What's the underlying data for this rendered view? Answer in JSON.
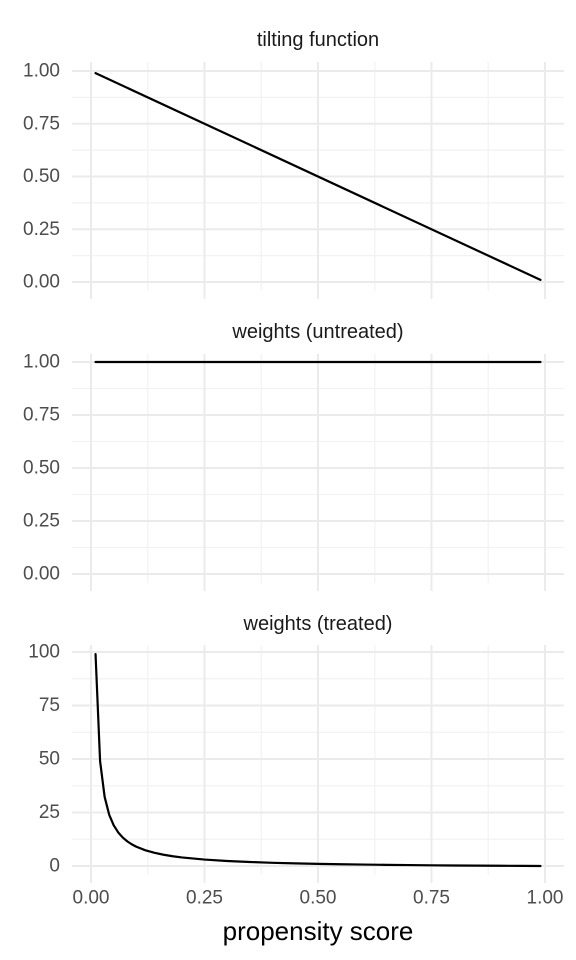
{
  "chart_data": [
    {
      "type": "line",
      "title": "tilting function",
      "xlabel": "",
      "ylabel": "",
      "xlim": [
        0,
        1
      ],
      "ylim": [
        0,
        1
      ],
      "x_ticks": [
        "0.00",
        "0.25",
        "0.50",
        "0.75",
        "1.00"
      ],
      "y_ticks": [
        "0.00",
        "0.25",
        "0.50",
        "0.75",
        "1.00"
      ],
      "grid": true,
      "series": [
        {
          "x": [
            0.01,
            0.99
          ],
          "y": [
            0.99,
            0.01
          ]
        }
      ]
    },
    {
      "type": "line",
      "title": "weights (untreated)",
      "xlabel": "",
      "ylabel": "",
      "xlim": [
        0,
        1
      ],
      "ylim": [
        0,
        1
      ],
      "x_ticks": [
        "0.00",
        "0.25",
        "0.50",
        "0.75",
        "1.00"
      ],
      "y_ticks": [
        "0.00",
        "0.25",
        "0.50",
        "0.75",
        "1.00"
      ],
      "grid": true,
      "series": [
        {
          "x": [
            0.01,
            0.99
          ],
          "y": [
            1,
            1
          ]
        }
      ]
    },
    {
      "type": "line",
      "title": "weights (treated)",
      "xlabel": "propensity score",
      "ylabel": "",
      "xlim": [
        0,
        1
      ],
      "ylim": [
        0,
        100
      ],
      "x_ticks": [
        "0.00",
        "0.25",
        "0.50",
        "0.75",
        "1.00"
      ],
      "y_ticks": [
        "0",
        "25",
        "50",
        "75",
        "100"
      ],
      "grid": true,
      "series": [
        {
          "x": [
            0.01,
            0.02,
            0.03,
            0.04,
            0.05,
            0.06,
            0.07,
            0.08,
            0.09,
            0.1,
            0.12,
            0.14,
            0.16,
            0.18,
            0.2,
            0.25,
            0.3,
            0.35,
            0.4,
            0.45,
            0.5,
            0.55,
            0.6,
            0.65,
            0.7,
            0.75,
            0.8,
            0.85,
            0.9,
            0.95,
            0.99
          ],
          "y": [
            99,
            49,
            32.33,
            24,
            19,
            15.67,
            13.29,
            11.5,
            10.11,
            9,
            7.33,
            6.14,
            5.25,
            4.56,
            4,
            3,
            2.33,
            1.86,
            1.5,
            1.22,
            1,
            0.82,
            0.67,
            0.54,
            0.43,
            0.33,
            0.25,
            0.18,
            0.11,
            0.05,
            0.01
          ]
        }
      ]
    }
  ]
}
